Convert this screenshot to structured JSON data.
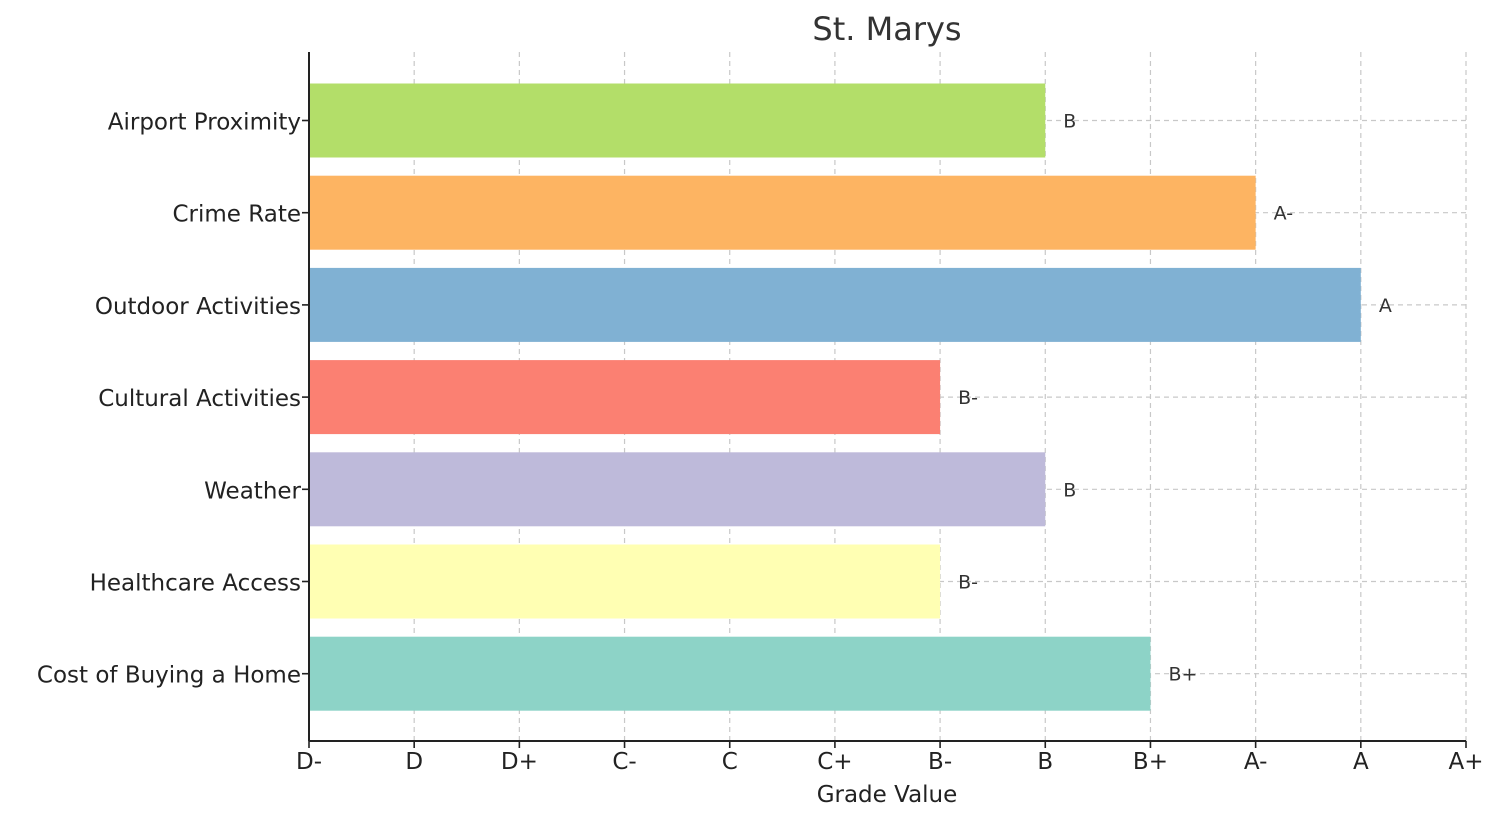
{
  "chart_data": {
    "type": "bar",
    "orientation": "horizontal",
    "title": "St. Marys",
    "xlabel": "Grade Value",
    "ylabel": "",
    "grade_scale": [
      "D-",
      "D",
      "D+",
      "C-",
      "C",
      "C+",
      "B-",
      "B",
      "B+",
      "A-",
      "A",
      "A+"
    ],
    "xlim": [
      "D-",
      "A+"
    ],
    "grid": true,
    "legend": "none",
    "categories": [
      "Airport Proximity",
      "Crime Rate",
      "Outdoor Activities",
      "Cultural Activities",
      "Weather",
      "Healthcare Access",
      "Cost of Buying a Home"
    ],
    "values": [
      "B",
      "A-",
      "A",
      "B-",
      "B",
      "B-",
      "B+"
    ],
    "data_labels": [
      "B",
      "A-",
      "A",
      "B-",
      "B",
      "B-",
      "B+"
    ],
    "colors": [
      "#b3de69",
      "#fdb462",
      "#80b1d3",
      "#fb8072",
      "#bebada",
      "#ffffb3",
      "#8dd3c7"
    ]
  }
}
